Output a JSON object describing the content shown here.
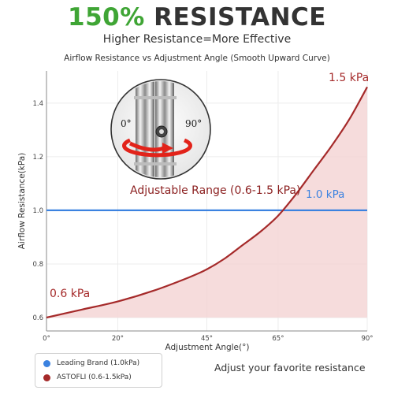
{
  "header": {
    "headline_highlight": "150%",
    "headline_rest": " RESISTANCE",
    "subtitle": "Higher Resistance=More Effective"
  },
  "chart_data": {
    "type": "line",
    "title": "Airflow Resistance vs Adjustment Angle (Smooth Upward Curve)",
    "xlabel": "Adjustment Angle(°)",
    "ylabel": "Airflow Resistance(kPa)",
    "xlim": [
      0,
      90
    ],
    "ylim": [
      0.55,
      1.52
    ],
    "x_ticks": [
      {
        "value": 0,
        "label": "0°"
      },
      {
        "value": 20,
        "label": "20°"
      },
      {
        "value": 45,
        "label": "45°"
      },
      {
        "value": 65,
        "label": "65°"
      },
      {
        "value": 90,
        "label": "90°"
      }
    ],
    "y_ticks": [
      {
        "value": 0.6,
        "label": "0.6"
      },
      {
        "value": 0.8,
        "label": "0.8"
      },
      {
        "value": 1.0,
        "label": "1.0"
      },
      {
        "value": 1.2,
        "label": "1.2"
      },
      {
        "value": 1.4,
        "label": "1.4"
      }
    ],
    "grid": true,
    "legend_position": "bottom-left",
    "series": [
      {
        "name": "Leading Brand (1.0kPa)",
        "color": "#3b82e0",
        "x": [
          0,
          90
        ],
        "y": [
          1.0,
          1.0
        ]
      },
      {
        "name": "ASTOFLI (0.6-1.5kPa)",
        "color": "#a52a2a",
        "x": [
          0,
          10,
          20,
          30,
          40,
          45,
          50,
          55,
          60,
          65,
          70,
          75,
          80,
          85,
          90
        ],
        "y": [
          0.6,
          0.63,
          0.66,
          0.7,
          0.75,
          0.78,
          0.82,
          0.87,
          0.92,
          0.98,
          1.06,
          1.15,
          1.24,
          1.34,
          1.46
        ]
      }
    ],
    "annotations": {
      "max_label": "1.5 kPa",
      "brand_label": "1.0 kPa",
      "min_label": "0.6 kPa",
      "range_label": "Adjustable Range (0.6-1.5 kPa)",
      "knob_left": "0°",
      "knob_right": "90°"
    },
    "fill_color": "#f4d6d6"
  },
  "footer": {
    "tagline": "Adjust your favorite resistance"
  }
}
